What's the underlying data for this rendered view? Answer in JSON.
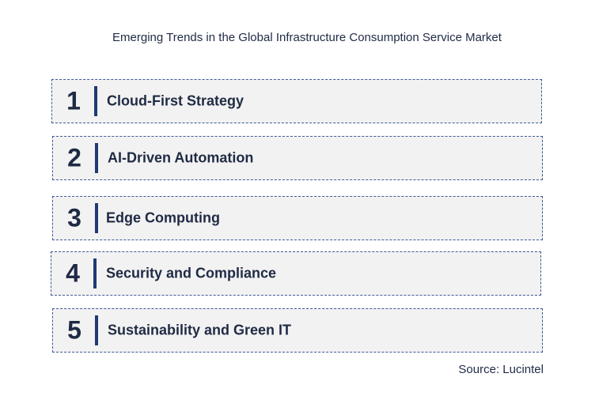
{
  "title": "Emerging Trends in the Global Infrastructure Consumption Service Market",
  "trends": [
    {
      "number": "1",
      "label": "Cloud-First Strategy"
    },
    {
      "number": "2",
      "label": "AI-Driven Automation"
    },
    {
      "number": "3",
      "label": "Edge Computing"
    },
    {
      "number": "4",
      "label": "Security and Compliance"
    },
    {
      "number": "5",
      "label": "Sustainability and Green IT"
    }
  ],
  "source": "Source: Lucintel"
}
